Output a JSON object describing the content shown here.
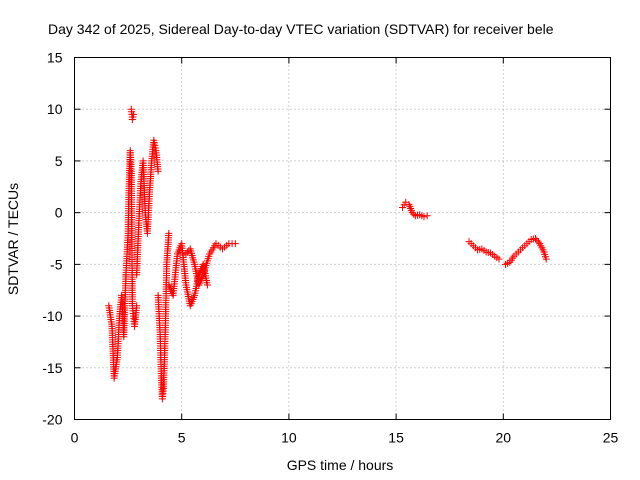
{
  "chart_data": {
    "type": "scatter",
    "title": "Day 342 of 2025, Sidereal Day-to-day VTEC variation (SDTVAR) for receiver bele",
    "xlabel": "GPS time / hours",
    "ylabel": "SDTVAR / TECUs",
    "xlim": [
      0,
      25
    ],
    "ylim": [
      -20,
      15
    ],
    "xticks": [
      0,
      5,
      10,
      15,
      20,
      25
    ],
    "yticks": [
      15,
      10,
      5,
      0,
      -5,
      -10,
      -15,
      -20
    ],
    "grid": true,
    "marker": "+",
    "color": "#ff0000",
    "series": [
      {
        "name": "SDTVAR",
        "segments": [
          {
            "x": [
              1.6,
              1.75,
              1.85,
              2.0,
              2.1,
              2.2,
              2.3,
              2.4
            ],
            "y": [
              -9,
              -11,
              -16,
              -14,
              -10,
              -8,
              -12,
              -6
            ]
          },
          {
            "x": [
              2.4,
              2.5,
              2.55,
              2.6,
              2.65,
              2.7,
              2.75,
              2.8,
              2.9
            ],
            "y": [
              -6,
              -2,
              3,
              6,
              4,
              -9,
              -10,
              -11,
              -9
            ]
          },
          {
            "x": [
              2.65,
              2.7,
              2.75
            ],
            "y": [
              10,
              9,
              9.5
            ]
          },
          {
            "x": [
              2.9,
              3.0,
              3.1,
              3.2,
              3.3,
              3.4,
              3.5,
              3.6,
              3.7,
              3.8,
              3.9
            ],
            "y": [
              -6,
              -1,
              3,
              5,
              0,
              -2,
              2,
              5,
              7,
              6,
              4
            ]
          },
          {
            "x": [
              3.9,
              4.0,
              4.05,
              4.1,
              4.15,
              4.2,
              4.25,
              4.3,
              4.4
            ],
            "y": [
              -8,
              -12,
              -16,
              -18,
              -17,
              -14,
              -10,
              -5,
              -2
            ]
          },
          {
            "x": [
              4.4,
              4.6,
              4.8,
              5.0,
              5.2,
              5.4,
              5.6,
              5.8,
              6.0,
              6.2
            ],
            "y": [
              -7,
              -8,
              -4,
              -3,
              -7,
              -9,
              -8,
              -6,
              -5,
              -7
            ]
          },
          {
            "x": [
              5.2,
              5.4,
              5.6,
              5.8,
              6.0,
              6.3,
              6.6,
              6.9,
              7.2,
              7.5
            ],
            "y": [
              -4,
              -3.5,
              -5,
              -7,
              -6,
              -4,
              -3,
              -3.5,
              -3,
              -3
            ]
          },
          {
            "x": [
              15.3,
              15.45,
              15.6,
              15.75,
              15.9,
              16.1,
              16.3,
              16.45
            ],
            "y": [
              0.5,
              1,
              0.8,
              0,
              -0.3,
              -0.2,
              -0.4,
              -0.3
            ]
          },
          {
            "x": [
              18.4,
              18.6,
              18.8,
              19.0,
              19.2,
              19.4,
              19.6,
              19.8
            ],
            "y": [
              -2.8,
              -3.2,
              -3.6,
              -3.5,
              -3.8,
              -3.9,
              -4.2,
              -4.5
            ]
          },
          {
            "x": [
              20.1,
              20.3,
              20.5,
              20.7,
              20.9,
              21.1,
              21.3,
              21.5,
              21.7,
              21.9,
              22.0
            ],
            "y": [
              -5,
              -4.8,
              -4.2,
              -3.8,
              -3.4,
              -3,
              -2.6,
              -2.5,
              -3,
              -3.8,
              -4.5
            ]
          }
        ]
      }
    ]
  }
}
